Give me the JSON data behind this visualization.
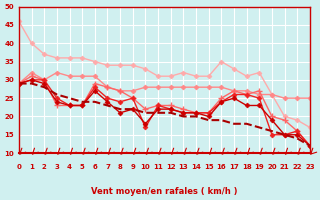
{
  "xlabel": "Vent moyen/en rafales ( km/h )",
  "ylabel": "",
  "xlim": [
    0,
    23
  ],
  "ylim": [
    10,
    50
  ],
  "yticks": [
    10,
    15,
    20,
    25,
    30,
    35,
    40,
    45,
    50
  ],
  "xticks": [
    0,
    1,
    2,
    3,
    4,
    5,
    6,
    7,
    8,
    9,
    10,
    11,
    12,
    13,
    14,
    15,
    16,
    17,
    18,
    19,
    20,
    21,
    22,
    23
  ],
  "bg_color": "#d0f0f0",
  "grid_color": "#ffffff",
  "line1_color": "#ffaaaa",
  "line2_color": "#ff8888",
  "line3_color": "#ff6666",
  "line4_color": "#ee2222",
  "line5_color": "#cc0000",
  "line6_color": "#aa0000",
  "line1": [
    46,
    40,
    37,
    36,
    36,
    36,
    35,
    34,
    34,
    34,
    33,
    31,
    31,
    32,
    31,
    31,
    35,
    33,
    31,
    32,
    26,
    20,
    19,
    17
  ],
  "line2": [
    29,
    32,
    30,
    32,
    31,
    31,
    31,
    28,
    27,
    27,
    28,
    28,
    28,
    28,
    28,
    28,
    28,
    27,
    27,
    26,
    26,
    25,
    25,
    25
  ],
  "line3": [
    29,
    31,
    30,
    23,
    23,
    23,
    29,
    28,
    27,
    25,
    22,
    23,
    23,
    22,
    21,
    21,
    25,
    27,
    26,
    27,
    20,
    19,
    16,
    12
  ],
  "line4": [
    29,
    30,
    30,
    25,
    23,
    23,
    28,
    25,
    24,
    25,
    17,
    23,
    22,
    21,
    21,
    21,
    24,
    26,
    26,
    25,
    15,
    15,
    16,
    12
  ],
  "line5": [
    29,
    30,
    29,
    24,
    23,
    23,
    27,
    24,
    21,
    22,
    18,
    22,
    22,
    21,
    21,
    20,
    24,
    25,
    23,
    23,
    19,
    15,
    15,
    12
  ],
  "line6": [
    29,
    29,
    28,
    26,
    25,
    24,
    24,
    23,
    22,
    22,
    21,
    21,
    21,
    20,
    20,
    19,
    19,
    18,
    18,
    17,
    16,
    15,
    14,
    12
  ],
  "arrow_color": "#cc0000"
}
